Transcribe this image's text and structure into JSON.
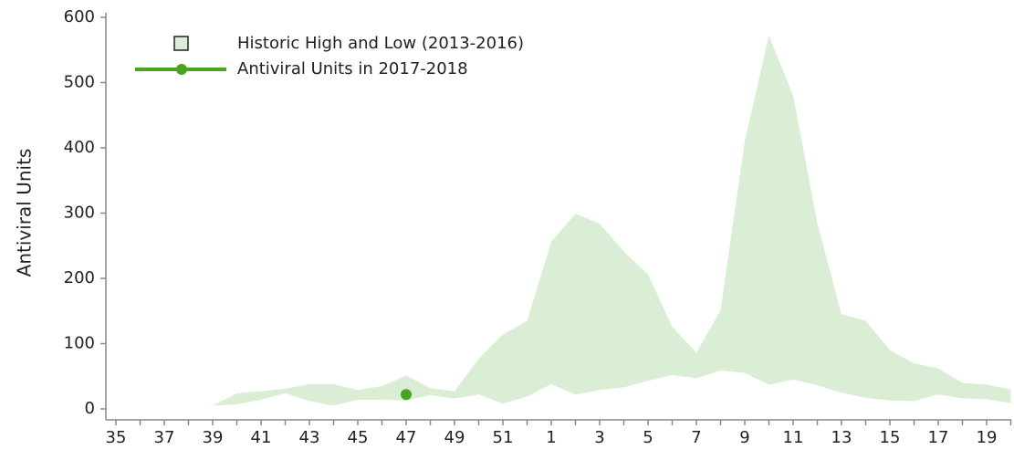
{
  "chart_data": {
    "type": "line",
    "y_label": "Antiviral Units",
    "categories": [
      "35",
      null,
      "37",
      null,
      "39",
      null,
      "41",
      null,
      "43",
      null,
      "45",
      null,
      "47",
      null,
      "49",
      null,
      "51",
      null,
      "1",
      null,
      "3",
      null,
      "5",
      null,
      "7",
      null,
      "9",
      null,
      "11",
      null,
      "13",
      null,
      "15",
      null,
      "17",
      null,
      "19",
      null
    ],
    "ylim": [
      0,
      600
    ],
    "yticks": [
      0,
      100,
      200,
      300,
      400,
      500,
      600
    ],
    "legend": "top-left",
    "series": [
      {
        "name": "Historic High and Low (2013-2016)",
        "color": "#d9eed4",
        "high": [
          null,
          null,
          null,
          null,
          5,
          24,
          27,
          31,
          38,
          38,
          29,
          35,
          51,
          32,
          27,
          77,
          114,
          135,
          256,
          299,
          284,
          241,
          206,
          126,
          86,
          151,
          410,
          572,
          480,
          285,
          145,
          135,
          90,
          70,
          62,
          40,
          37,
          30
        ],
        "low": [
          null,
          null,
          null,
          null,
          5,
          7,
          14,
          24,
          12,
          5,
          14,
          14,
          13,
          21,
          16,
          22,
          8,
          19,
          38,
          22,
          29,
          33,
          43,
          52,
          47,
          59,
          55,
          37,
          45,
          36,
          25,
          17,
          13,
          12,
          22,
          16,
          15,
          9
        ]
      },
      {
        "name": "Antiviral Units in 2017-2018",
        "color": "#4aa420",
        "values": [
          null,
          null,
          null,
          null,
          null,
          null,
          null,
          null,
          null,
          null,
          null,
          null,
          22,
          null,
          null,
          null,
          null,
          null,
          null,
          null,
          null,
          null,
          null,
          null,
          null,
          null,
          null,
          null,
          null,
          null,
          null,
          null,
          null,
          null,
          null,
          null,
          null,
          null
        ]
      }
    ]
  }
}
